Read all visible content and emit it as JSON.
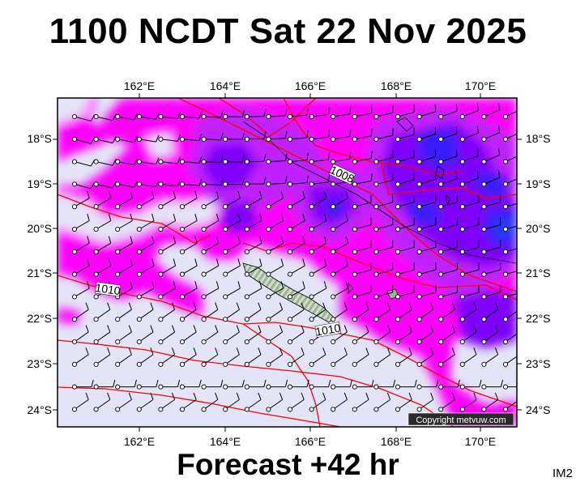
{
  "header": {
    "title": "1100 NCDT Sat 22 Nov 2025"
  },
  "footer": {
    "forecast": "Forecast +42 hr",
    "badge": "IM2"
  },
  "map": {
    "copyright": "Copyright metvuw.com",
    "lon_labels": [
      "162°E",
      "164°E",
      "166°E",
      "168°E",
      "170°E"
    ],
    "lat_labels": [
      "18°S",
      "19°S",
      "20°S",
      "21°S",
      "22°S",
      "23°S",
      "24°S"
    ],
    "isobar_labels": [
      "1008",
      "1010",
      "1010"
    ],
    "colors": {
      "calm": "#e4e4f8",
      "magenta": "#ff00ff",
      "violet": "#c020ff",
      "purple": "#8000ff",
      "blue": "#3a1cff",
      "deep_blue": "#1640ff",
      "isobar": "#ff0000",
      "land": "#9cb494"
    }
  }
}
